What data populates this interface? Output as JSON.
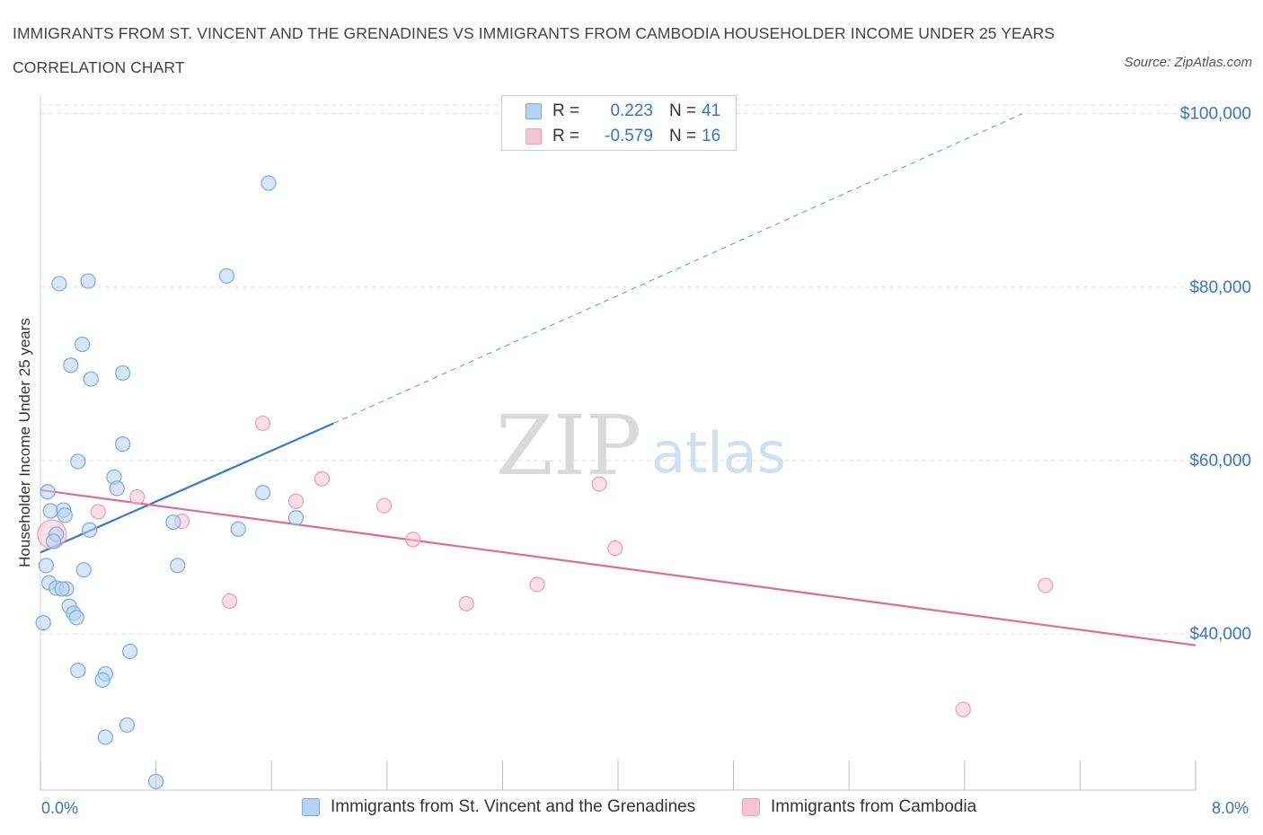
{
  "title": "IMMIGRANTS FROM ST. VINCENT AND THE GRENADINES VS IMMIGRANTS FROM CAMBODIA HOUSEHOLDER INCOME UNDER 25 YEARS CORRELATION CHART",
  "source": "Source: ZipAtlas.com",
  "watermark": {
    "zip": "ZIP",
    "atlas": "atlas"
  },
  "colors": {
    "blue_fill": "#b8d2f3",
    "blue_stroke": "#7aaae6",
    "blue_line": "#3a78cf",
    "pink_fill": "#f6c5d4",
    "pink_stroke": "#ee9cb6",
    "pink_line": "#e26a96",
    "tick_text": "#3a75c4",
    "grid": "#e0e0e0"
  },
  "legend_top": {
    "rows": [
      {
        "r_label": "R =",
        "r_value": "0.223",
        "n_label": "N =",
        "n_value": "41"
      },
      {
        "r_label": "R =",
        "r_value": "-0.579",
        "n_label": "N =",
        "n_value": "16"
      }
    ]
  },
  "bottom_legend": [
    "Immigrants from St. Vincent and the Grenadines",
    "Immigrants from Cambodia"
  ],
  "chart_data": {
    "type": "scatter",
    "ylabel": "Householder Income Under 25 years",
    "xlim": [
      0,
      8
    ],
    "ylim": [
      22000,
      101000
    ],
    "x_tick_labels": [
      "0.0%",
      "8.0%"
    ],
    "y_ticks": [
      40000,
      60000,
      80000,
      100000
    ],
    "y_tick_labels": [
      "$40,000",
      "$60,000",
      "$80,000",
      "$100,000"
    ],
    "grid": true,
    "series": [
      {
        "name": "Immigrants from St. Vincent and the Grenadines",
        "points": [
          [
            1.58,
            92000
          ],
          [
            1.29,
            81300
          ],
          [
            0.33,
            80700
          ],
          [
            0.13,
            80400
          ],
          [
            0.29,
            73400
          ],
          [
            0.21,
            71000
          ],
          [
            0.35,
            69400
          ],
          [
            0.57,
            70100
          ],
          [
            0.57,
            61900
          ],
          [
            0.26,
            59900
          ],
          [
            0.51,
            58100
          ],
          [
            0.53,
            56800
          ],
          [
            0.05,
            56400
          ],
          [
            1.54,
            56300
          ],
          [
            0.07,
            54200
          ],
          [
            0.16,
            54300
          ],
          [
            0.17,
            53700
          ],
          [
            1.77,
            53400
          ],
          [
            0.92,
            52900
          ],
          [
            0.34,
            52000
          ],
          [
            1.37,
            52100
          ],
          [
            0.11,
            51500
          ],
          [
            0.09,
            50700
          ],
          [
            0.04,
            47900
          ],
          [
            0.95,
            47900
          ],
          [
            0.3,
            47400
          ],
          [
            0.06,
            45900
          ],
          [
            0.11,
            45300
          ],
          [
            0.18,
            45200
          ],
          [
            0.15,
            45200
          ],
          [
            0.2,
            43200
          ],
          [
            0.23,
            42400
          ],
          [
            0.25,
            41900
          ],
          [
            0.02,
            41300
          ],
          [
            0.62,
            38000
          ],
          [
            0.26,
            35800
          ],
          [
            0.45,
            35400
          ],
          [
            0.43,
            34700
          ],
          [
            0.6,
            29500
          ],
          [
            0.45,
            28100
          ],
          [
            0.8,
            23000
          ]
        ],
        "trend": {
          "x": [
            0.0,
            2.03
          ],
          "y": [
            49400,
            64300
          ],
          "dashed_to": [
            6.8,
            100000
          ]
        }
      },
      {
        "name": "Immigrants from Cambodia",
        "points": [
          [
            0.08,
            51500
          ],
          [
            0.4,
            54100
          ],
          [
            0.67,
            55800
          ],
          [
            0.98,
            53000
          ],
          [
            1.54,
            64300
          ],
          [
            1.77,
            55300
          ],
          [
            1.95,
            57900
          ],
          [
            2.38,
            54800
          ],
          [
            2.58,
            50900
          ],
          [
            2.95,
            43500
          ],
          [
            3.44,
            45700
          ],
          [
            3.87,
            57300
          ],
          [
            3.98,
            49900
          ],
          [
            1.31,
            43800
          ],
          [
            6.96,
            45600
          ],
          [
            6.39,
            31300
          ]
        ],
        "trend": {
          "x": [
            0.0,
            8.0
          ],
          "y": [
            56600,
            38700
          ]
        }
      }
    ]
  }
}
